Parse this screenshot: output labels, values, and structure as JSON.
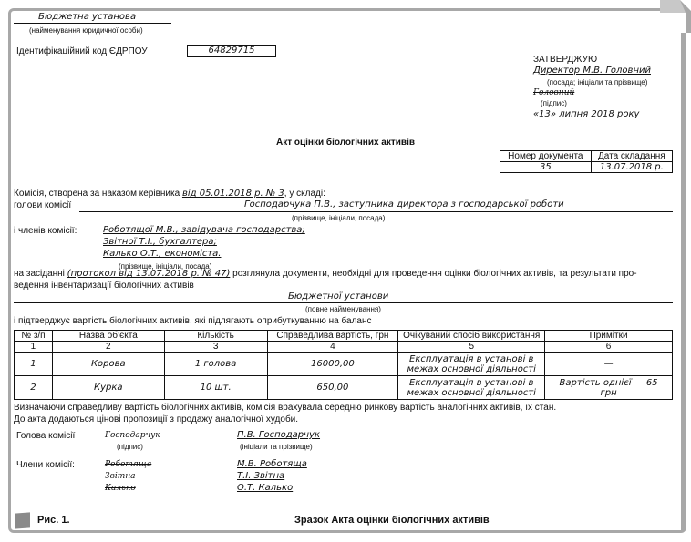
{
  "header": {
    "org_name": "Бюджетна установа",
    "org_caption": "(найменування юридичної особи)",
    "edrpou_label": "Ідентифікаційний код ЄДРПОУ",
    "edrpou_value": "64829715"
  },
  "approval": {
    "title": "ЗАТВЕРДЖУЮ",
    "position_name": "Директор М.В. Головний",
    "position_caption": "(посада; ініціали та прізвище)",
    "signature": "Головний",
    "signature_caption": "(підпис)",
    "date": "«13» липня 2018 року"
  },
  "doc_title": "Акт оцінки біологічних активів",
  "doc_info": {
    "number_label": "Номер документа",
    "date_label": "Дата складання",
    "number": "35",
    "date": "13.07.2018 р."
  },
  "body": {
    "commission_prefix": "Комісія, створена за наказом керівника ",
    "commission_order": "від 05.01.2018 р. № 3",
    "commission_suffix": ", у складі:",
    "head_label": "голови комісії",
    "head_value": "Господарчука П.В., заступника директора з господарської роботи",
    "head_caption": "(прізвище, ініціали, посада)",
    "members_label": "і членів комісії:",
    "members": [
      "Роботящої М.В., завідувача господарства;",
      "Звітної Т.І., бухгалтера;",
      "Калько О.Т., економіста."
    ],
    "members_caption": "(прізвище, ініціали, посада)",
    "meeting_prefix": "на засіданні ",
    "meeting_protocol": "(протокол від 13.07.2018 р. № 47)",
    "meeting_text1": " розглянула документи, необхідні для проведення оцінки біологічних активів, та результати про-",
    "meeting_text2": "ведення інвентаризації біологічних активів",
    "full_name": "Бюджетної установи",
    "full_name_caption": "(повне найменування)",
    "confirm_text": "і підтверджує вартість біологічних активів, які підлягають оприбуткуванню на баланс"
  },
  "table": {
    "headers": [
      "№ з/п",
      "Назва об’єкта",
      "Кількість",
      "Справедлива вартість, грн",
      "Очікуваний спосіб використання",
      "Примітки"
    ],
    "col_numbers": [
      "1",
      "2",
      "3",
      "4",
      "5",
      "6"
    ],
    "rows": [
      [
        "1",
        "Корова",
        "1 голова",
        "16000,00",
        "Експлуатація в установі в межах основної діяльності",
        "—"
      ],
      [
        "2",
        "Курка",
        "10 шт.",
        "650,00",
        "Експлуатація в установі в межах основної діяльності",
        "Вартість однієї — 65 грн"
      ]
    ]
  },
  "footer_text": {
    "line1": "Визначаючи справедливу вартість біологічних активів, комісія врахувала середню ринкову вартість аналогічних активів, їх стан.",
    "line2": "До акта додаються цінові пропозиції з продажу аналогічної худоби."
  },
  "signatures": {
    "head_label": "Голова комісії",
    "head_signature": "Господарчук",
    "signature_caption": "(підпис)",
    "head_name": "П.В. Господарчук",
    "name_caption": "(ініціали та прізвище)",
    "members_label": "Члени комісії:",
    "members": [
      {
        "signature": "Роботяща",
        "name": "М.В. Роботяща"
      },
      {
        "signature": "Звітна",
        "name": "Т.І. Звітна"
      },
      {
        "signature": "Калько",
        "name": "О.Т. Калько"
      }
    ]
  },
  "figure": {
    "label": "Рис. 1.",
    "caption": "Зразок Акта оцінки біологічних активів"
  }
}
